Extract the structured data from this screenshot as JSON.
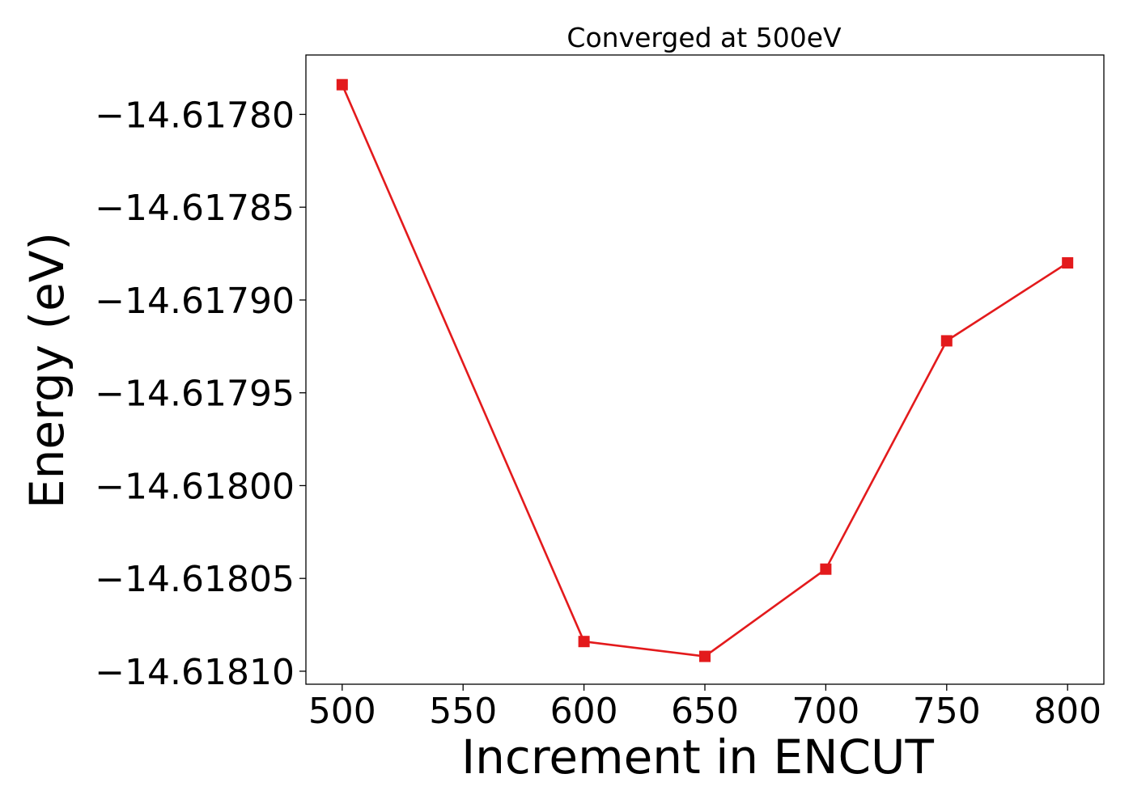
{
  "chart_data": {
    "type": "line",
    "title": "Converged at 500eV",
    "xlabel": "Increment in ENCUT",
    "ylabel": "Energy (eV)",
    "x": [
      500,
      600,
      650,
      700,
      750,
      800
    ],
    "series": [
      {
        "values": [
          -14.617784,
          -14.618084,
          -14.618092,
          -14.618045,
          -14.617922,
          -14.61788
        ],
        "color": "#e31a1c",
        "marker": "square"
      }
    ],
    "xlim": [
      485,
      815
    ],
    "ylim": [
      -14.618107,
      -14.617768
    ],
    "xticks": [
      500,
      550,
      600,
      650,
      700,
      750,
      800
    ],
    "xtick_labels": [
      "500",
      "550",
      "600",
      "650",
      "700",
      "750",
      "800"
    ],
    "yticks": [
      -14.6178,
      -14.61785,
      -14.6179,
      -14.61795,
      -14.618,
      -14.61805,
      -14.6181
    ],
    "ytick_labels": [
      "−14.61780",
      "−14.61785",
      "−14.61790",
      "−14.61795",
      "−14.61800",
      "−14.61805",
      "−14.61810"
    ],
    "grid": false,
    "legend": "none"
  }
}
